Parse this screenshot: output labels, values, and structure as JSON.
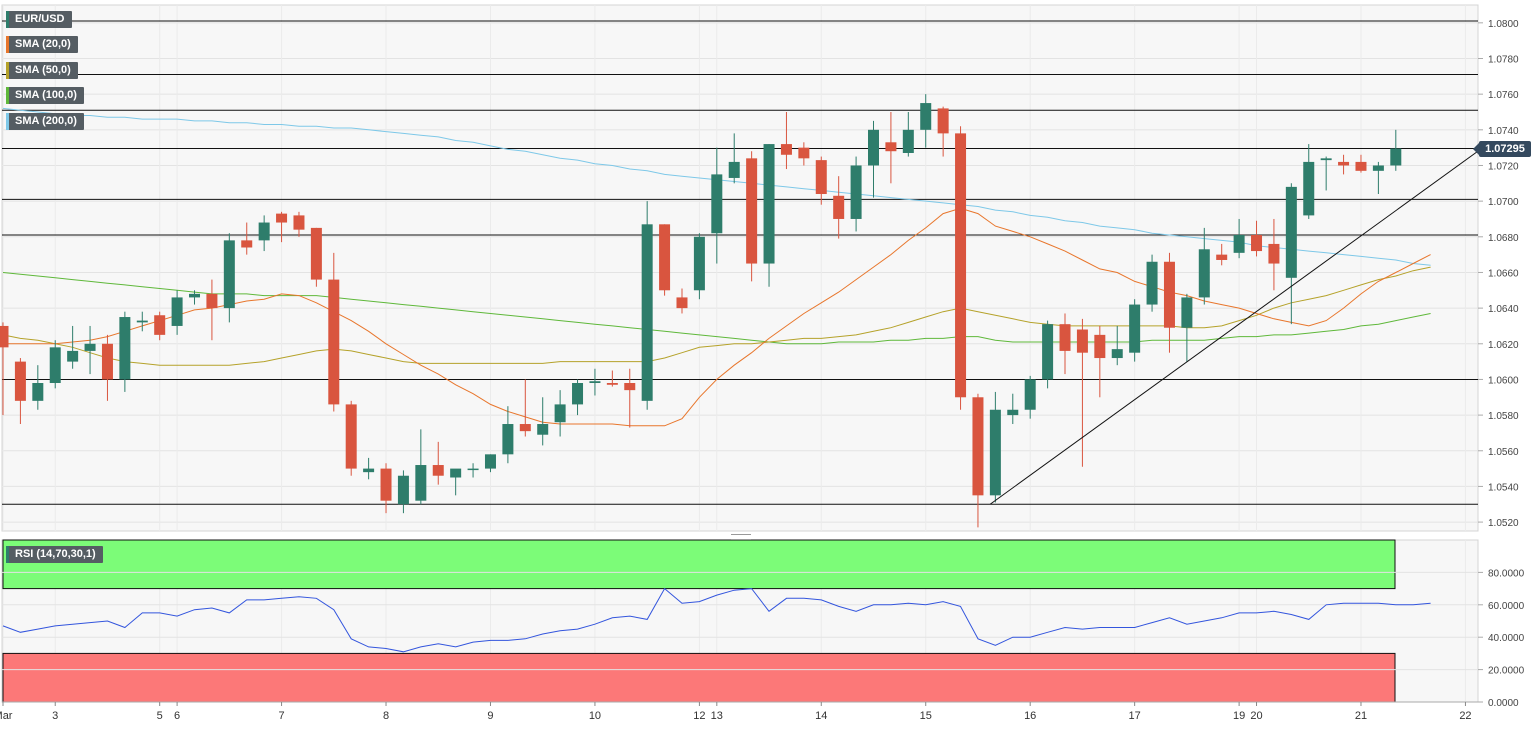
{
  "legend": {
    "symbol": "EUR/USD",
    "sma20": "SMA (20,0)",
    "sma50": "SMA (50,0)",
    "sma100": "SMA (100,0)",
    "sma200": "SMA (200,0)",
    "rsi": "RSI (14,70,30,1)"
  },
  "colors": {
    "up": "#2e7d6b",
    "down": "#d9553f",
    "sma20": "#e8762c",
    "sma50": "#b5a22a",
    "sma100": "#5fb83a",
    "sma200": "#7ec8e8",
    "rsi": "#3355dd",
    "overbought": "#7cfc78",
    "oversold": "#fc7878",
    "price_tag": "#34495e"
  },
  "current_price": "1.07295",
  "chart_data": [
    {
      "type": "candlestick",
      "ylim": [
        1.0515,
        1.081
      ],
      "yticks": [
        "1.0520",
        "1.0540",
        "1.0560",
        "1.0580",
        "1.0600",
        "1.0620",
        "1.0640",
        "1.0660",
        "1.0680",
        "1.0700",
        "1.0720",
        "1.0740",
        "1.0760",
        "1.0780",
        "1.0800"
      ],
      "xticks": [
        {
          "i": 0,
          "label": "Mar"
        },
        {
          "i": 3,
          "label": "3"
        },
        {
          "i": 9,
          "label": "5"
        },
        {
          "i": 10,
          "label": "6"
        },
        {
          "i": 16,
          "label": "7"
        },
        {
          "i": 22,
          "label": "8"
        },
        {
          "i": 28,
          "label": "9"
        },
        {
          "i": 34,
          "label": "10"
        },
        {
          "i": 40,
          "label": "12"
        },
        {
          "i": 41,
          "label": "13"
        },
        {
          "i": 47,
          "label": "14"
        },
        {
          "i": 53,
          "label": "15"
        },
        {
          "i": 59,
          "label": "16"
        },
        {
          "i": 65,
          "label": "17"
        },
        {
          "i": 71,
          "label": "19"
        },
        {
          "i": 72,
          "label": "20"
        },
        {
          "i": 78,
          "label": "21"
        },
        {
          "i": 84,
          "label": "22"
        }
      ],
      "levels": [
        1.0801,
        1.0771,
        1.0751,
        1.07295,
        1.0701,
        1.0681,
        1.06,
        1.053
      ],
      "trendline": [
        [
          56.7,
          1.053
        ],
        [
          85.0,
          1.073
        ]
      ],
      "candles": [
        [
          1.063,
          1.0632,
          1.058,
          1.0618
        ],
        [
          1.061,
          1.0612,
          1.0575,
          1.0588
        ],
        [
          1.0588,
          1.0608,
          1.0583,
          1.0598
        ],
        [
          1.0598,
          1.0622,
          1.0595,
          1.0618
        ],
        [
          1.061,
          1.063,
          1.0606,
          1.0616
        ],
        [
          1.0616,
          1.063,
          1.0603,
          1.062
        ],
        [
          1.062,
          1.0625,
          1.0588,
          1.06
        ],
        [
          1.06,
          1.0638,
          1.0593,
          1.0635
        ],
        [
          1.0632,
          1.0638,
          1.0627,
          1.0633
        ],
        [
          1.0636,
          1.0638,
          1.0622,
          1.0625
        ],
        [
          1.063,
          1.065,
          1.0625,
          1.0646
        ],
        [
          1.0646,
          1.065,
          1.0642,
          1.0648
        ],
        [
          1.0648,
          1.0656,
          1.0622,
          1.064
        ],
        [
          1.064,
          1.0682,
          1.0632,
          1.0678
        ],
        [
          1.0678,
          1.0688,
          1.067,
          1.0674
        ],
        [
          1.0678,
          1.0692,
          1.0672,
          1.0688
        ],
        [
          1.0693,
          1.0694,
          1.0677,
          1.0688
        ],
        [
          1.0692,
          1.0694,
          1.068,
          1.0684
        ],
        [
          1.0685,
          1.0685,
          1.0652,
          1.0656
        ],
        [
          1.0656,
          1.0671,
          1.0582,
          1.0586
        ],
        [
          1.0586,
          1.0588,
          1.0546,
          1.055
        ],
        [
          1.0548,
          1.0556,
          1.0544,
          1.055
        ],
        [
          1.055,
          1.0553,
          1.0525,
          1.0532
        ],
        [
          1.053,
          1.0549,
          1.0525,
          1.0546
        ],
        [
          1.0532,
          1.0572,
          1.053,
          1.0552
        ],
        [
          1.0552,
          1.0565,
          1.0541,
          1.0546
        ],
        [
          1.0545,
          1.0549,
          1.0535,
          1.055
        ],
        [
          1.055,
          1.0553,
          1.0545,
          1.055
        ],
        [
          1.055,
          1.0558,
          1.0548,
          1.0558
        ],
        [
          1.0558,
          1.0585,
          1.0553,
          1.0575
        ],
        [
          1.0575,
          1.06,
          1.0568,
          1.0571
        ],
        [
          1.0569,
          1.059,
          1.0563,
          1.0575
        ],
        [
          1.0576,
          1.0594,
          1.0568,
          1.0586
        ],
        [
          1.0586,
          1.06,
          1.058,
          1.0598
        ],
        [
          1.0598,
          1.0606,
          1.0591,
          1.0599
        ],
        [
          1.0598,
          1.0605,
          1.0596,
          1.0597
        ],
        [
          1.0598,
          1.0606,
          1.0573,
          1.0594
        ],
        [
          1.0588,
          1.07,
          1.0583,
          1.0687
        ],
        [
          1.0687,
          1.0687,
          1.0647,
          1.065
        ],
        [
          1.0646,
          1.0651,
          1.0637,
          1.064
        ],
        [
          1.065,
          1.0682,
          1.0645,
          1.068
        ],
        [
          1.0682,
          1.073,
          1.0665,
          1.0715
        ],
        [
          1.0713,
          1.0738,
          1.071,
          1.0722
        ],
        [
          1.0724,
          1.0728,
          1.0655,
          1.0665
        ],
        [
          1.0665,
          1.0732,
          1.0652,
          1.0732
        ],
        [
          1.0732,
          1.075,
          1.0718,
          1.0726
        ],
        [
          1.073,
          1.0733,
          1.072,
          1.0724
        ],
        [
          1.0723,
          1.0725,
          1.0698,
          1.0704
        ],
        [
          1.0703,
          1.0714,
          1.0679,
          1.069
        ],
        [
          1.069,
          1.0725,
          1.0683,
          1.072
        ],
        [
          1.072,
          1.0745,
          1.0702,
          1.074
        ],
        [
          1.0733,
          1.075,
          1.071,
          1.0728
        ],
        [
          1.0727,
          1.075,
          1.0725,
          1.074
        ],
        [
          1.074,
          1.076,
          1.073,
          1.0755
        ],
        [
          1.0752,
          1.0753,
          1.0725,
          1.0738
        ],
        [
          1.0738,
          1.0742,
          1.0583,
          1.059
        ],
        [
          1.059,
          1.0592,
          1.0517,
          1.0535
        ],
        [
          1.0535,
          1.0593,
          1.0531,
          1.0583
        ],
        [
          1.058,
          1.0592,
          1.0575,
          1.0583
        ],
        [
          1.0583,
          1.0602,
          1.0578,
          1.06
        ],
        [
          1.06,
          1.0633,
          1.0595,
          1.0631
        ],
        [
          1.0631,
          1.0637,
          1.0603,
          1.0616
        ],
        [
          1.0628,
          1.0634,
          1.0551,
          1.0615
        ],
        [
          1.0625,
          1.063,
          1.059,
          1.0612
        ],
        [
          1.0612,
          1.063,
          1.0608,
          1.0617
        ],
        [
          1.0615,
          1.0645,
          1.061,
          1.0642
        ],
        [
          1.0642,
          1.067,
          1.0638,
          1.0666
        ],
        [
          1.0666,
          1.0671,
          1.0615,
          1.0629
        ],
        [
          1.0629,
          1.0648,
          1.061,
          1.0646
        ],
        [
          1.0646,
          1.0685,
          1.0642,
          1.0673
        ],
        [
          1.067,
          1.0676,
          1.0664,
          1.0667
        ],
        [
          1.0671,
          1.069,
          1.0668,
          1.0681
        ],
        [
          1.0681,
          1.0689,
          1.0669,
          1.0672
        ],
        [
          1.0676,
          1.069,
          1.065,
          1.0665
        ],
        [
          1.0657,
          1.071,
          1.0631,
          1.0708
        ],
        [
          1.0692,
          1.0732,
          1.069,
          1.0722
        ],
        [
          1.0723,
          1.0725,
          1.0706,
          1.0724
        ],
        [
          1.0722,
          1.0726,
          1.0715,
          1.072
        ],
        [
          1.0722,
          1.0726,
          1.0716,
          1.0717
        ],
        [
          1.0717,
          1.0722,
          1.0704,
          1.072
        ],
        [
          1.072,
          1.074,
          1.0717,
          1.07295
        ]
      ],
      "sma20": [
        1.062,
        1.062,
        1.062,
        1.062,
        1.0621,
        1.0622,
        1.0624,
        1.0627,
        1.063,
        1.0633,
        1.0636,
        1.0639,
        1.064,
        1.0642,
        1.0644,
        1.0645,
        1.0648,
        1.0647,
        1.0643,
        1.0638,
        1.0633,
        1.0627,
        1.062,
        1.0614,
        1.0608,
        1.0603,
        1.0597,
        1.0592,
        1.0586,
        1.0582,
        1.0579,
        1.0576,
        1.0575,
        1.0575,
        1.0575,
        1.0575,
        1.0574,
        1.0574,
        1.0574,
        1.0578,
        1.059,
        1.06,
        1.0608,
        1.0615,
        1.0623,
        1.063,
        1.0637,
        1.0643,
        1.0649,
        1.0656,
        1.0663,
        1.067,
        1.0678,
        1.0685,
        1.0693,
        1.0696,
        1.0693,
        1.0686,
        1.0683,
        1.068,
        1.0676,
        1.0672,
        1.0667,
        1.0662,
        1.066,
        1.0655,
        1.0652,
        1.0649,
        1.0647,
        1.0644,
        1.0642,
        1.064,
        1.0637,
        1.0634,
        1.0632,
        1.063,
        1.0633,
        1.064,
        1.0648,
        1.0655,
        1.066,
        1.0665,
        1.067
      ],
      "sma50": [
        1.0625,
        1.0623,
        1.0622,
        1.062,
        1.0618,
        1.0615,
        1.0612,
        1.061,
        1.0609,
        1.0608,
        1.0608,
        1.0608,
        1.0608,
        1.0608,
        1.0609,
        1.061,
        1.0612,
        1.0614,
        1.0616,
        1.0617,
        1.0616,
        1.0614,
        1.0612,
        1.061,
        1.0609,
        1.0609,
        1.0609,
        1.0609,
        1.0609,
        1.0609,
        1.0609,
        1.0609,
        1.061,
        1.061,
        1.061,
        1.061,
        1.061,
        1.061,
        1.0612,
        1.0615,
        1.0618,
        1.0619,
        1.062,
        1.062,
        1.0621,
        1.0622,
        1.0623,
        1.0623,
        1.0624,
        1.0625,
        1.0627,
        1.0629,
        1.0632,
        1.0635,
        1.0638,
        1.064,
        1.0638,
        1.0636,
        1.0634,
        1.0632,
        1.0631,
        1.063,
        1.063,
        1.063,
        1.063,
        1.063,
        1.063,
        1.063,
        1.0629,
        1.0629,
        1.063,
        1.0633,
        1.0636,
        1.064,
        1.0643,
        1.0645,
        1.0647,
        1.065,
        1.0653,
        1.0656,
        1.0658,
        1.0661,
        1.0663
      ],
      "sma100": [
        1.066,
        1.0659,
        1.0658,
        1.0657,
        1.0656,
        1.0655,
        1.0654,
        1.0653,
        1.0652,
        1.0651,
        1.065,
        1.0649,
        1.0648,
        1.0648,
        1.0648,
        1.0647,
        1.0647,
        1.0647,
        1.0647,
        1.0646,
        1.0645,
        1.0644,
        1.0643,
        1.0642,
        1.0641,
        1.064,
        1.0639,
        1.0638,
        1.0637,
        1.0636,
        1.0635,
        1.0634,
        1.0633,
        1.0632,
        1.0631,
        1.063,
        1.0629,
        1.0628,
        1.0627,
        1.0626,
        1.0625,
        1.0624,
        1.0623,
        1.0622,
        1.0621,
        1.062,
        1.062,
        1.062,
        1.0621,
        1.0621,
        1.0621,
        1.0622,
        1.0622,
        1.0623,
        1.0623,
        1.0624,
        1.0624,
        1.0622,
        1.0621,
        1.0621,
        1.0621,
        1.0621,
        1.0621,
        1.0621,
        1.0621,
        1.0621,
        1.0622,
        1.0622,
        1.0622,
        1.0622,
        1.0623,
        1.0624,
        1.0624,
        1.0625,
        1.0625,
        1.0626,
        1.0627,
        1.0628,
        1.063,
        1.0631,
        1.0633,
        1.0635,
        1.0637
      ],
      "sma200": [
        1.0752,
        1.0751,
        1.075,
        1.0749,
        1.0748,
        1.0748,
        1.0747,
        1.0747,
        1.0746,
        1.0746,
        1.0746,
        1.0745,
        1.0745,
        1.0744,
        1.0744,
        1.0743,
        1.0743,
        1.0742,
        1.0742,
        1.0741,
        1.0741,
        1.074,
        1.0739,
        1.0738,
        1.0737,
        1.0736,
        1.0734,
        1.0733,
        1.0731,
        1.0729,
        1.0728,
        1.0726,
        1.0724,
        1.0723,
        1.0721,
        1.072,
        1.0718,
        1.0717,
        1.0715,
        1.0714,
        1.0713,
        1.0712,
        1.0711,
        1.071,
        1.0709,
        1.0708,
        1.0707,
        1.0706,
        1.0705,
        1.0704,
        1.0703,
        1.0702,
        1.0701,
        1.07,
        1.0699,
        1.0698,
        1.0697,
        1.0695,
        1.0694,
        1.0692,
        1.0691,
        1.0689,
        1.0688,
        1.0686,
        1.0685,
        1.0684,
        1.0682,
        1.0681,
        1.068,
        1.0679,
        1.0678,
        1.0677,
        1.0675,
        1.0674,
        1.0673,
        1.0672,
        1.0671,
        1.067,
        1.0669,
        1.0668,
        1.0667,
        1.0665,
        1.0664
      ]
    },
    {
      "type": "line",
      "title": "RSI (14,70,30,1)",
      "ylim": [
        0,
        100
      ],
      "yticks": [
        "0.0000",
        "20.0000",
        "40.0000",
        "60.0000",
        "80.0000"
      ],
      "overbought": 70,
      "oversold": 30,
      "values": [
        47,
        43,
        45,
        47,
        48,
        49,
        50,
        46,
        55,
        55,
        53,
        57,
        58,
        55,
        63,
        63,
        64,
        65,
        64,
        57,
        39,
        34,
        33,
        31,
        34,
        36,
        34,
        37,
        38,
        38,
        39,
        42,
        44,
        45,
        48,
        52,
        53,
        51,
        70,
        61,
        62,
        66,
        69,
        70,
        56,
        64,
        64,
        63,
        59,
        56,
        60,
        60,
        61,
        60,
        62,
        59,
        39,
        35,
        40,
        40,
        43,
        46,
        45,
        46,
        46,
        46,
        49,
        52,
        48,
        50,
        52,
        55,
        55,
        56,
        54,
        51,
        60,
        61,
        61,
        61,
        60,
        60,
        61
      ]
    }
  ]
}
